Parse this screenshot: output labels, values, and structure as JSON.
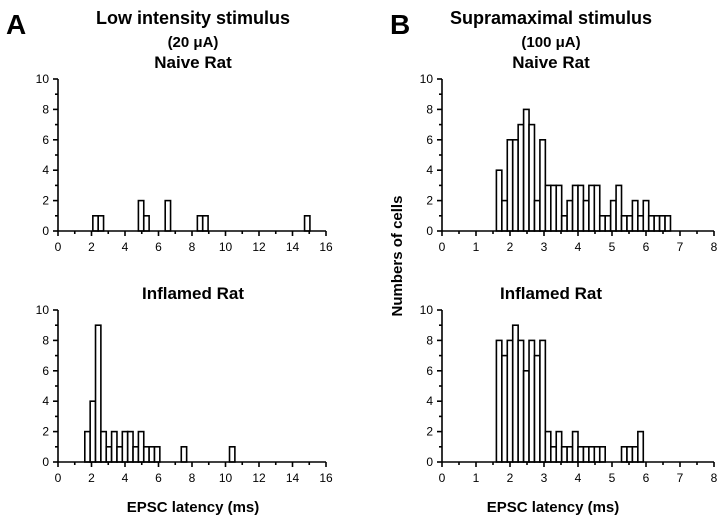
{
  "panels": [
    {
      "letter": "A",
      "title": "Low intensity stimulus",
      "subtitle": "(20 μA)"
    },
    {
      "letter": "B",
      "title": "Supramaximal stimulus",
      "subtitle": "(100 μA)"
    }
  ],
  "shared": {
    "ylabel": "Numbers of cells",
    "xlabel_left": "EPSC latency (ms)",
    "xlabel_right": "EPSC latency (ms)"
  },
  "chart_data": [
    {
      "type": "bar",
      "title": "Naive Rat",
      "xlabel": "",
      "ylabel": "",
      "xlim": [
        0,
        16
      ],
      "ylim": [
        0,
        10
      ],
      "xticks": [
        0,
        2,
        4,
        6,
        8,
        10,
        12,
        14,
        16
      ],
      "yticks": [
        0,
        2,
        4,
        6,
        8,
        10
      ],
      "bin_width": 0.32,
      "bin_starts": [
        2.08,
        2.4,
        4.8,
        5.12,
        6.4,
        8.32,
        8.64,
        14.72
      ],
      "values": [
        1,
        1,
        2,
        1,
        2,
        1,
        1,
        1
      ]
    },
    {
      "type": "bar",
      "title": "Inflamed Rat",
      "xlabel": "EPSC latency (ms)",
      "ylabel": "",
      "xlim": [
        0,
        16
      ],
      "ylim": [
        0,
        10
      ],
      "xticks": [
        0,
        2,
        4,
        6,
        8,
        10,
        12,
        14,
        16
      ],
      "yticks": [
        0,
        2,
        4,
        6,
        8,
        10
      ],
      "bin_width": 0.32,
      "bin_starts": [
        1.6,
        1.92,
        2.24,
        2.56,
        2.88,
        3.2,
        3.52,
        3.84,
        4.16,
        4.48,
        4.8,
        5.12,
        5.44,
        5.76,
        7.36,
        10.24
      ],
      "values": [
        2,
        4,
        9,
        2,
        1,
        2,
        1,
        2,
        2,
        1,
        2,
        1,
        1,
        1,
        1,
        1
      ]
    },
    {
      "type": "bar",
      "title": "Naive Rat",
      "xlabel": "",
      "ylabel": "Numbers of cells",
      "xlim": [
        0,
        8
      ],
      "ylim": [
        0,
        10
      ],
      "xticks": [
        0,
        1,
        2,
        3,
        4,
        5,
        6,
        7,
        8
      ],
      "yticks": [
        0,
        2,
        4,
        6,
        8,
        10
      ],
      "bin_width": 0.16,
      "bin_starts": [
        1.6,
        1.76,
        1.92,
        2.08,
        2.24,
        2.4,
        2.56,
        2.72,
        2.88,
        3.04,
        3.2,
        3.36,
        3.52,
        3.68,
        3.84,
        4.0,
        4.16,
        4.32,
        4.48,
        4.64,
        4.8,
        4.96,
        5.12,
        5.28,
        5.44,
        5.6,
        5.76,
        5.92,
        6.08,
        6.24,
        6.4,
        6.56
      ],
      "values": [
        4,
        2,
        6,
        6,
        7,
        8,
        7,
        2,
        6,
        3,
        3,
        3,
        1,
        2,
        3,
        3,
        2,
        3,
        3,
        1,
        1,
        2,
        3,
        1,
        1,
        2,
        1,
        2,
        1,
        1,
        1,
        1
      ]
    },
    {
      "type": "bar",
      "title": "Inflamed Rat",
      "xlabel": "EPSC latency (ms)",
      "ylabel": "Numbers of cells",
      "xlim": [
        0,
        8
      ],
      "ylim": [
        0,
        10
      ],
      "xticks": [
        0,
        1,
        2,
        3,
        4,
        5,
        6,
        7,
        8
      ],
      "yticks": [
        0,
        2,
        4,
        6,
        8,
        10
      ],
      "bin_width": 0.16,
      "bin_starts": [
        1.6,
        1.76,
        1.92,
        2.08,
        2.24,
        2.4,
        2.56,
        2.72,
        2.88,
        3.04,
        3.2,
        3.36,
        3.52,
        3.68,
        3.84,
        4.0,
        4.16,
        4.32,
        4.48,
        4.64,
        5.28,
        5.44,
        5.6,
        5.76
      ],
      "values": [
        8,
        7,
        8,
        9,
        8,
        6,
        8,
        7,
        8,
        2,
        1,
        2,
        1,
        1,
        2,
        1,
        1,
        1,
        1,
        1,
        1,
        1,
        1,
        2
      ]
    }
  ]
}
